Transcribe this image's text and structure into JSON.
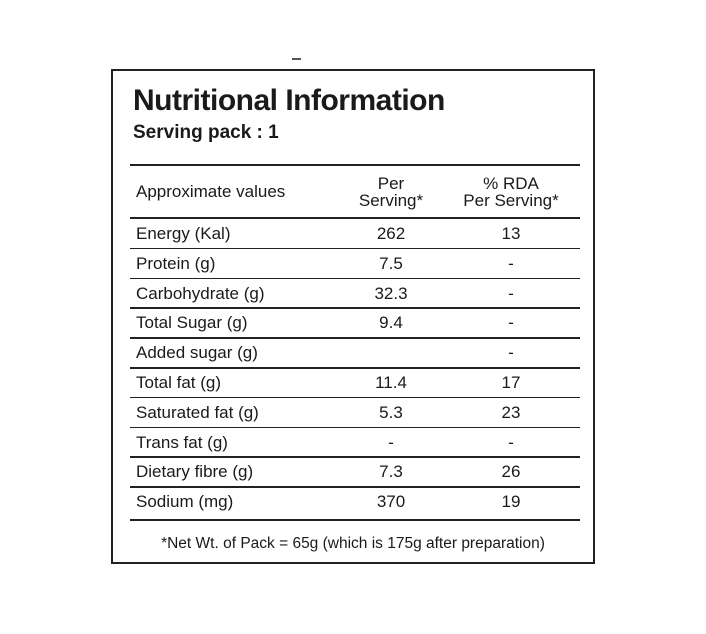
{
  "label": {
    "title": "Nutritional Information",
    "serving_pack": "Serving pack : 1",
    "headers": {
      "nutrient": "Approximate values",
      "per_serving_line1": "Per",
      "per_serving_line2": "Serving*",
      "rda_line1": "% RDA",
      "rda_line2": "Per Serving*"
    },
    "rows": [
      {
        "name": "Energy (Kal)",
        "per_serving": "262",
        "rda": "13"
      },
      {
        "name": "Protein (g)",
        "per_serving": "7.5",
        "rda": "-"
      },
      {
        "name": "Carbohydrate (g)",
        "per_serving": "32.3",
        "rda": "-"
      },
      {
        "name": "Total Sugar (g)",
        "per_serving": "9.4",
        "rda": "-"
      },
      {
        "name": "Added sugar (g)",
        "per_serving": "",
        "rda": "-"
      },
      {
        "name": "Total fat (g)",
        "per_serving": "11.4",
        "rda": "17"
      },
      {
        "name": "Saturated fat (g)",
        "per_serving": "5.3",
        "rda": "23"
      },
      {
        "name": "Trans fat (g)",
        "per_serving": "-",
        "rda": "-"
      },
      {
        "name": "Dietary fibre (g)",
        "per_serving": "7.3",
        "rda": "26"
      },
      {
        "name": "Sodium (mg)",
        "per_serving": "370",
        "rda": "19"
      }
    ],
    "footnote": "*Net Wt. of Pack = 65g (which is 175g after preparation)"
  }
}
